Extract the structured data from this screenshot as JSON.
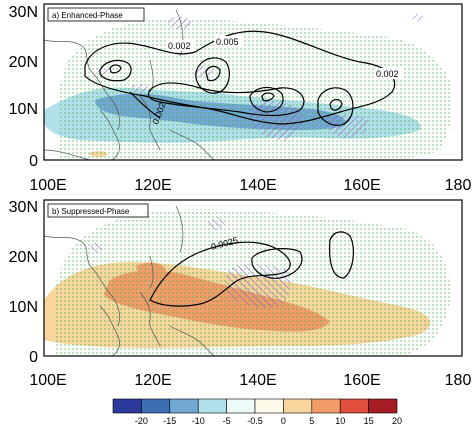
{
  "panels": [
    {
      "label": "a) Enhanced-Phase",
      "contour_labels": [
        "0.002",
        "0.005",
        "0.002",
        "0.002"
      ]
    },
    {
      "label": "b) Suppressed-Phase",
      "contour_labels": [
        "0.0025"
      ]
    }
  ],
  "axes": {
    "x_ticks": [
      "100E",
      "120E",
      "140E",
      "160E",
      "180"
    ],
    "y_ticks": [
      "0",
      "10N",
      "20N",
      "30N"
    ]
  },
  "colorbar": {
    "labels": [
      "-20",
      "-15",
      "-10",
      "-5",
      "-0.5",
      "0",
      "5",
      "10",
      "15",
      "20"
    ],
    "colors": [
      "#2b3a9a",
      "#3d6db3",
      "#72a8d3",
      "#b2e0ea",
      "#ecfaf8",
      "#fefbea",
      "#f8d69e",
      "#f29c6a",
      "#e04e3c",
      "#a51d24"
    ]
  },
  "colors": {
    "stipple": "#3fae49",
    "hatch": "#9b4fd0",
    "contour": "#000000",
    "coast": "#555555"
  }
}
